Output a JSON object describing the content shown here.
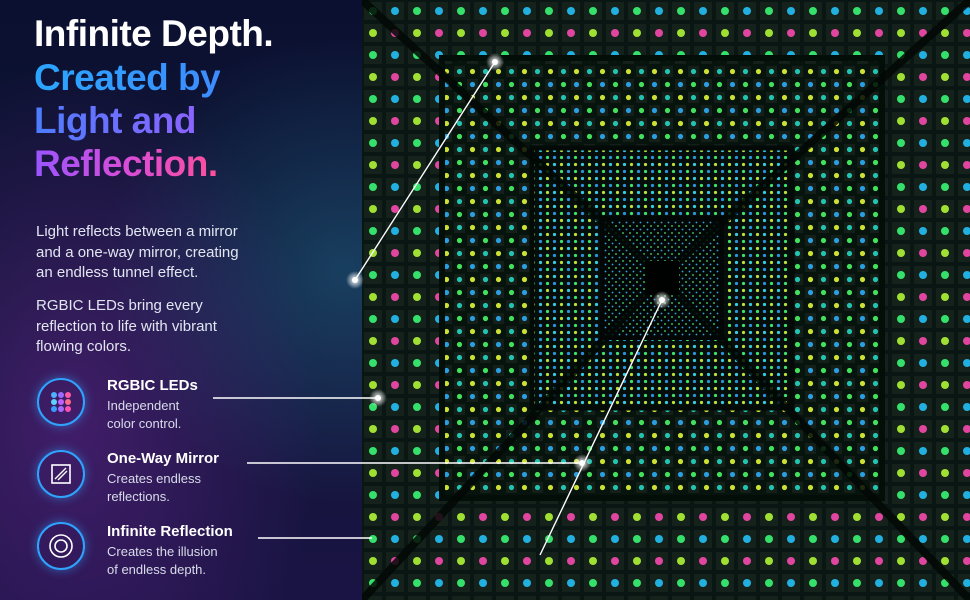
{
  "headline": {
    "line1": "Infinite Depth.",
    "accent_lines": [
      "Created by",
      "Light and",
      "Reflection."
    ]
  },
  "paragraphs": [
    [
      "Light reflects between a mirror",
      "and a one-way mirror, creating",
      "an endless tunnel effect."
    ],
    [
      "RGBIC LEDs bring every",
      "reflection to life with vibrant",
      "flowing colors."
    ]
  ],
  "features": [
    {
      "title": "RGBIC LEDs",
      "description": [
        "Independent",
        "color control."
      ]
    },
    {
      "title": "One-Way Mirror",
      "description": [
        "Creates endless",
        "reflections."
      ]
    },
    {
      "title": "Infinite Reflection",
      "description": [
        "Creates the illusion",
        "of endless depth."
      ]
    }
  ]
}
